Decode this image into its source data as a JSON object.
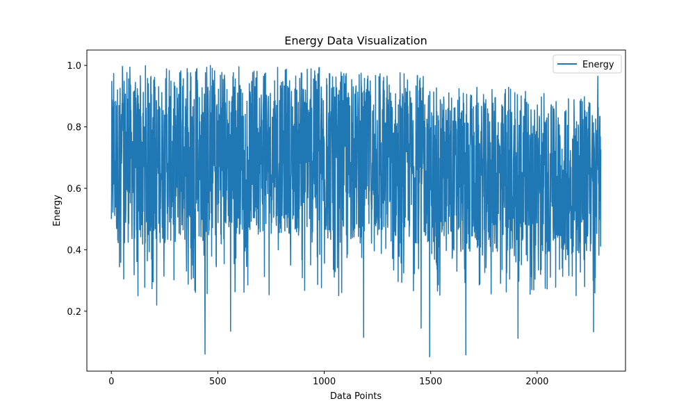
{
  "chart_data": {
    "type": "line",
    "title": "Energy Data Visualization",
    "xlabel": "Data Points",
    "ylabel": "Energy",
    "xlim": [
      -115,
      2415
    ],
    "ylim": [
      0.005,
      1.05
    ],
    "xticks": [
      0,
      500,
      1000,
      1500,
      2000
    ],
    "yticks": [
      0.2,
      0.4,
      0.6,
      0.8,
      1.0
    ],
    "xtick_labels": [
      "0",
      "500",
      "1000",
      "1500",
      "2000"
    ],
    "ytick_labels": [
      "0.2",
      "0.4",
      "0.6",
      "0.8",
      "1.0"
    ],
    "grid": false,
    "legend_position": "top-right",
    "n_points": 2300,
    "series": [
      {
        "name": "Energy",
        "color": "#1f77b4",
        "description_stats": {
          "max": 1.0,
          "min": 0.052
        },
        "extremes": [
          {
            "x": 0,
            "y": 0.5
          },
          {
            "x": 125,
            "y": 0.25
          },
          {
            "x": 213,
            "y": 0.22
          },
          {
            "x": 440,
            "y": 0.06
          },
          {
            "x": 465,
            "y": 1.0
          },
          {
            "x": 560,
            "y": 0.135
          },
          {
            "x": 1185,
            "y": 0.115
          },
          {
            "x": 1455,
            "y": 0.145
          },
          {
            "x": 1495,
            "y": 0.052
          },
          {
            "x": 1665,
            "y": 0.058
          },
          {
            "x": 1910,
            "y": 0.112
          },
          {
            "x": 2265,
            "y": 0.133
          },
          {
            "x": 2285,
            "y": 0.965
          }
        ],
        "segments": [
          {
            "x_start": 0,
            "x_end": 500,
            "y_low": 0.42,
            "y_high": 0.95
          },
          {
            "x_start": 500,
            "x_end": 1000,
            "y_low": 0.45,
            "y_high": 0.95
          },
          {
            "x_start": 1000,
            "x_end": 1500,
            "y_low": 0.42,
            "y_high": 0.93
          },
          {
            "x_start": 1500,
            "x_end": 2000,
            "y_low": 0.38,
            "y_high": 0.88
          },
          {
            "x_start": 2000,
            "x_end": 2300,
            "y_low": 0.38,
            "y_high": 0.86
          }
        ]
      }
    ]
  }
}
